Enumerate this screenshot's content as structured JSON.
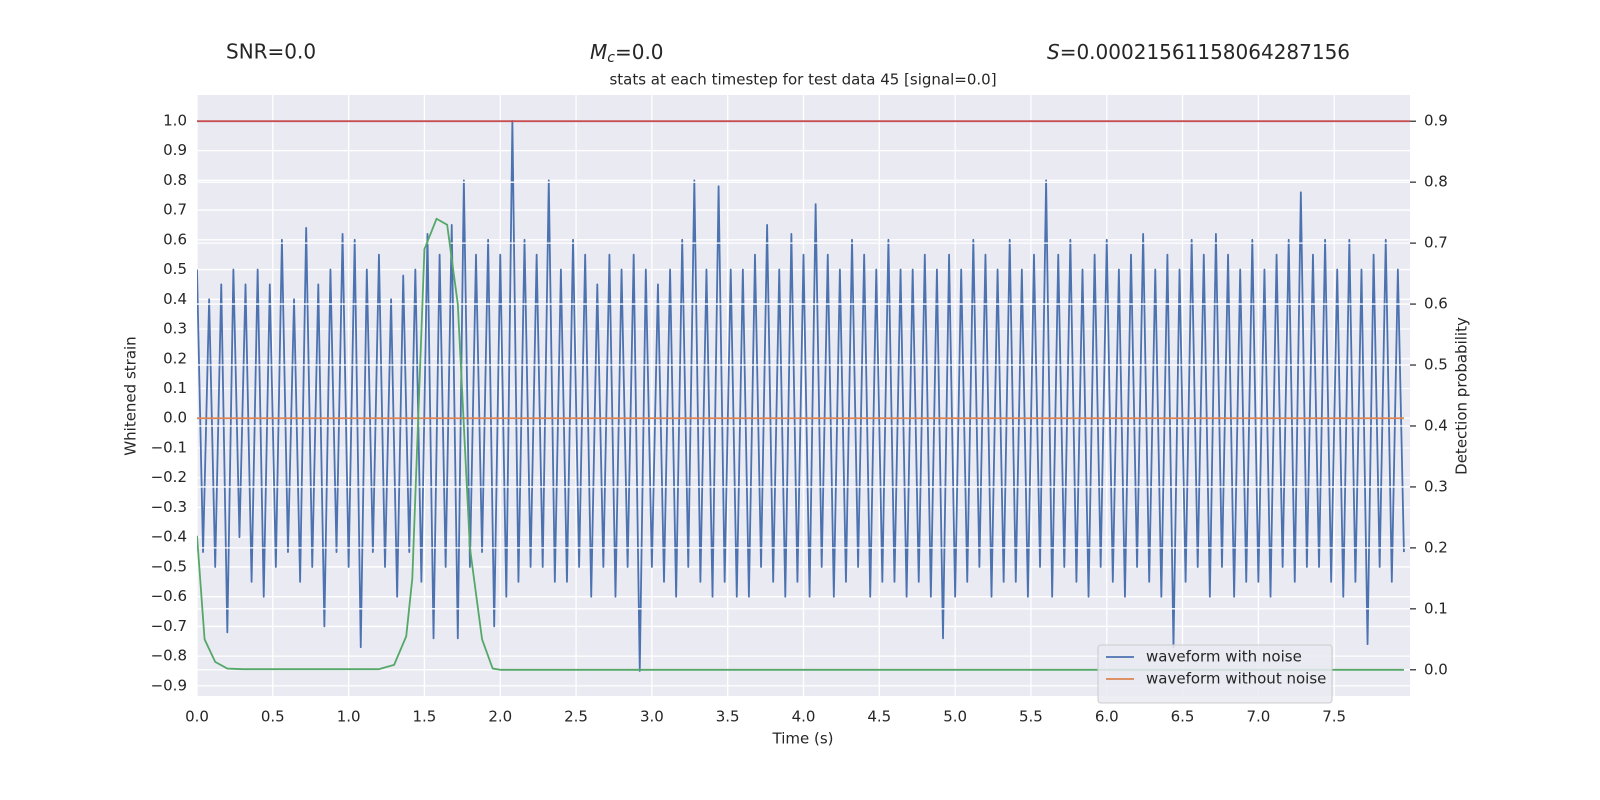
{
  "chart_data": {
    "type": "line",
    "title": "stats at each timestep for test data 45 [signal=0.0]",
    "annotations": {
      "snr": "SNR=0.0",
      "mass_symbol": "M",
      "mass_subscript": "c",
      "mass_text": "=0.0",
      "s_symbol": "S",
      "s_text": "=0.00021561158064287156"
    },
    "x_label": "Time (s)",
    "y_label": "Whitened strain",
    "y2_label": "Detection probability",
    "xlim": [
      0,
      8.0
    ],
    "ylim": [
      -0.934,
      1.087
    ],
    "y2lim": [
      -0.043,
      0.943
    ],
    "xticks": [
      {
        "value": 0,
        "label": "0.0"
      },
      0.5,
      {
        "value": 1,
        "label": "1.0"
      },
      1.5,
      {
        "value": 2,
        "label": "2.0"
      },
      2.5,
      {
        "value": 3,
        "label": "3.0"
      },
      3.5,
      {
        "value": 4,
        "label": "4.0"
      },
      4.5,
      {
        "value": 5,
        "label": "5.0"
      },
      5.5,
      {
        "value": 6,
        "label": "6.0"
      },
      6.5,
      {
        "value": 7,
        "label": "7.0"
      },
      7.5
    ],
    "yticks": [
      {
        "value": -0.9,
        "label": "−0.9"
      },
      {
        "value": -0.8,
        "label": "−0.8"
      },
      {
        "value": -0.7,
        "label": "−0.7"
      },
      {
        "value": -0.6,
        "label": "−0.6"
      },
      {
        "value": -0.5,
        "label": "−0.5"
      },
      {
        "value": -0.4,
        "label": "−0.4"
      },
      {
        "value": -0.3,
        "label": "−0.3"
      },
      {
        "value": -0.2,
        "label": "−0.2"
      },
      {
        "value": -0.1,
        "label": "−0.1"
      },
      {
        "value": 0,
        "label": "0.0"
      },
      0.1,
      0.2,
      0.3,
      0.4,
      0.5,
      0.6,
      0.7,
      0.8,
      0.9,
      {
        "value": 1,
        "label": "1.0"
      }
    ],
    "y2ticks": [
      {
        "value": 0,
        "label": "0.0"
      },
      0.1,
      0.2,
      0.3,
      0.4,
      0.5,
      0.6,
      0.7,
      0.8,
      0.9
    ],
    "grid": true,
    "legend": "lower right",
    "reference_line": {
      "axis": "y2",
      "value": 0.9,
      "color": "#c44e52"
    },
    "series": [
      {
        "name": "waveform with noise",
        "color": "#4c72b0",
        "x": [
          0,
          0.04,
          0.08,
          0.12,
          0.16,
          0.2,
          0.24,
          0.28,
          0.32,
          0.36,
          0.4,
          0.44,
          0.48,
          0.52,
          0.56,
          0.6,
          0.64,
          0.68,
          0.72,
          0.76,
          0.8,
          0.84,
          0.88,
          0.92,
          0.96,
          1,
          1.04,
          1.08,
          1.12,
          1.16,
          1.2,
          1.24,
          1.28,
          1.32,
          1.36,
          1.4,
          1.44,
          1.48,
          1.52,
          1.56,
          1.6,
          1.64,
          1.68,
          1.72,
          1.76,
          1.8,
          1.84,
          1.88,
          1.92,
          1.96,
          2,
          2.04,
          2.08,
          2.12,
          2.16,
          2.2,
          2.24,
          2.28,
          2.32,
          2.36,
          2.4,
          2.44,
          2.48,
          2.52,
          2.56,
          2.6,
          2.64,
          2.68,
          2.72,
          2.76,
          2.8,
          2.84,
          2.88,
          2.92,
          2.96,
          3,
          3.04,
          3.08,
          3.12,
          3.16,
          3.2,
          3.24,
          3.28,
          3.32,
          3.36,
          3.4,
          3.44,
          3.48,
          3.52,
          3.56,
          3.6,
          3.64,
          3.68,
          3.72,
          3.76,
          3.8,
          3.84,
          3.88,
          3.92,
          3.96,
          4,
          4.04,
          4.08,
          4.12,
          4.16,
          4.2,
          4.24,
          4.28,
          4.32,
          4.36,
          4.4,
          4.44,
          4.48,
          4.52,
          4.56,
          4.6,
          4.64,
          4.68,
          4.72,
          4.76,
          4.8,
          4.84,
          4.88,
          4.92,
          4.96,
          5,
          5.04,
          5.08,
          5.12,
          5.16,
          5.2,
          5.24,
          5.28,
          5.32,
          5.36,
          5.4,
          5.44,
          5.48,
          5.52,
          5.56,
          5.6,
          5.64,
          5.68,
          5.72,
          5.76,
          5.8,
          5.84,
          5.88,
          5.92,
          5.96,
          6,
          6.04,
          6.08,
          6.12,
          6.16,
          6.2,
          6.24,
          6.28,
          6.32,
          6.36,
          6.4,
          6.44,
          6.48,
          6.52,
          6.56,
          6.6,
          6.64,
          6.68,
          6.72,
          6.76,
          6.8,
          6.84,
          6.88,
          6.92,
          6.96,
          7,
          7.04,
          7.08,
          7.12,
          7.16,
          7.2,
          7.24,
          7.28,
          7.32,
          7.36,
          7.4,
          7.44,
          7.48,
          7.52,
          7.56,
          7.6,
          7.64,
          7.68,
          7.72,
          7.76,
          7.8,
          7.84,
          7.88,
          7.92,
          7.96
        ],
        "values": [
          0.5,
          -0.45,
          0.4,
          -0.5,
          0.45,
          -0.72,
          0.5,
          -0.4,
          0.45,
          -0.55,
          0.5,
          -0.6,
          0.45,
          -0.5,
          0.6,
          -0.45,
          0.4,
          -0.55,
          0.64,
          -0.5,
          0.45,
          -0.7,
          0.5,
          -0.45,
          0.62,
          -0.5,
          0.6,
          -0.77,
          0.5,
          -0.45,
          0.55,
          -0.5,
          0.4,
          -0.6,
          0.48,
          -0.45,
          0.5,
          -0.55,
          0.62,
          -0.74,
          0.55,
          -0.5,
          0.65,
          -0.74,
          0.8,
          -0.5,
          0.55,
          -0.45,
          0.6,
          -0.7,
          0.55,
          -0.6,
          1.0,
          -0.55,
          0.6,
          -0.5,
          0.55,
          -0.5,
          0.8,
          -0.55,
          0.5,
          -0.55,
          0.6,
          -0.5,
          0.55,
          -0.6,
          0.45,
          -0.5,
          0.55,
          -0.6,
          0.5,
          -0.5,
          0.55,
          -0.85,
          0.5,
          -0.5,
          0.45,
          -0.55,
          0.5,
          -0.6,
          0.6,
          -0.5,
          0.8,
          -0.55,
          0.5,
          -0.6,
          0.78,
          -0.55,
          0.5,
          -0.6,
          0.5,
          -0.6,
          0.55,
          -0.5,
          0.65,
          -0.55,
          0.5,
          -0.6,
          0.62,
          -0.55,
          0.55,
          -0.6,
          0.72,
          -0.5,
          0.55,
          -0.6,
          0.5,
          -0.55,
          0.6,
          -0.5,
          0.55,
          -0.6,
          0.5,
          -0.55,
          0.6,
          -0.55,
          0.5,
          -0.6,
          0.5,
          -0.55,
          0.55,
          -0.6,
          0.5,
          -0.74,
          0.55,
          -0.6,
          0.5,
          -0.55,
          0.6,
          -0.5,
          0.55,
          -0.6,
          0.5,
          -0.55,
          0.6,
          -0.55,
          0.5,
          -0.6,
          0.55,
          -0.5,
          0.8,
          -0.6,
          0.55,
          -0.5,
          0.6,
          -0.55,
          0.5,
          -0.6,
          0.55,
          -0.5,
          0.6,
          -0.55,
          0.5,
          -0.6,
          0.55,
          -0.5,
          0.62,
          -0.55,
          0.5,
          -0.6,
          0.55,
          -0.77,
          0.5,
          -0.55,
          0.6,
          -0.5,
          0.55,
          -0.6,
          0.62,
          -0.5,
          0.55,
          -0.6,
          0.5,
          -0.55,
          0.6,
          -0.55,
          0.5,
          -0.6,
          0.55,
          -0.5,
          0.6,
          -0.55,
          0.76,
          -0.5,
          0.55,
          -0.5,
          0.6,
          -0.55,
          0.5,
          -0.6,
          0.6,
          -0.55,
          0.5,
          -0.76,
          0.55,
          -0.5,
          0.6,
          -0.55,
          0.5,
          -0.45
        ]
      },
      {
        "name": "waveform without noise",
        "color": "#dd8452",
        "x": [
          0,
          7.96
        ],
        "values": [
          0,
          0
        ]
      },
      {
        "color": "#55a868",
        "axis": "y2",
        "x": [
          0,
          0.05,
          0.12,
          0.2,
          0.3,
          1.2,
          1.3,
          1.38,
          1.42,
          1.5,
          1.58,
          1.65,
          1.72,
          1.8,
          1.88,
          1.95,
          2.0,
          7.96
        ],
        "values": [
          0.22,
          0.05,
          0.013,
          0.002,
          0.001,
          0.001,
          0.008,
          0.055,
          0.15,
          0.69,
          0.74,
          0.73,
          0.6,
          0.2,
          0.05,
          0.002,
          0,
          0
        ]
      }
    ]
  }
}
